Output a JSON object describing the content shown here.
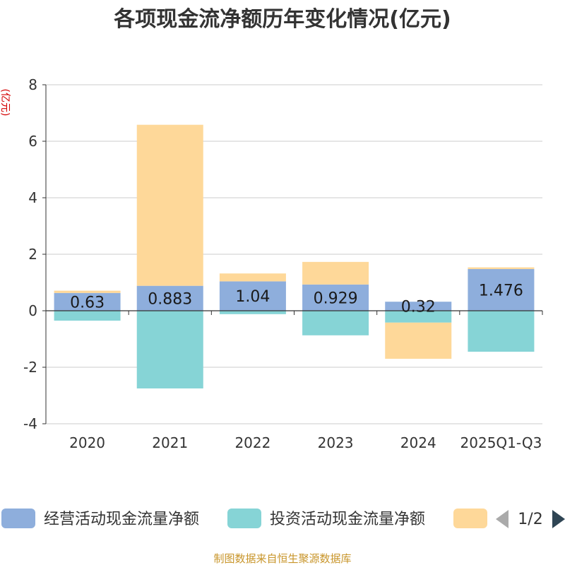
{
  "chart_data": {
    "type": "bar",
    "stacked": true,
    "title": "各项现金流净额历年变化情况(亿元)",
    "ylabel": "(亿元)",
    "ylim": [
      -4,
      8
    ],
    "yticks": [
      -4,
      -2,
      0,
      2,
      4,
      6,
      8
    ],
    "grid": true,
    "categories": [
      "2020",
      "2021",
      "2022",
      "2023",
      "2024",
      "2025Q1-Q3"
    ],
    "series": [
      {
        "name": "经营活动现金流量净额",
        "color": "#8eaedc",
        "values": [
          0.63,
          0.883,
          1.04,
          0.929,
          0.32,
          1.476
        ],
        "labels": [
          "0.63",
          "0.883",
          "1.04",
          "0.929",
          "0.32",
          "1.476"
        ]
      },
      {
        "name": "投资活动现金流量净额",
        "color": "#86d4d6",
        "values": [
          -0.35,
          -2.75,
          -0.12,
          -0.87,
          -0.42,
          -1.45
        ]
      },
      {
        "name": "",
        "color": "#fed899",
        "values": [
          0.08,
          5.7,
          0.28,
          0.8,
          -1.28,
          0.06
        ]
      }
    ],
    "legend_position": "bottom"
  },
  "legend": {
    "page": "1/2"
  },
  "source": "制图数据来自恒生聚源数据库"
}
